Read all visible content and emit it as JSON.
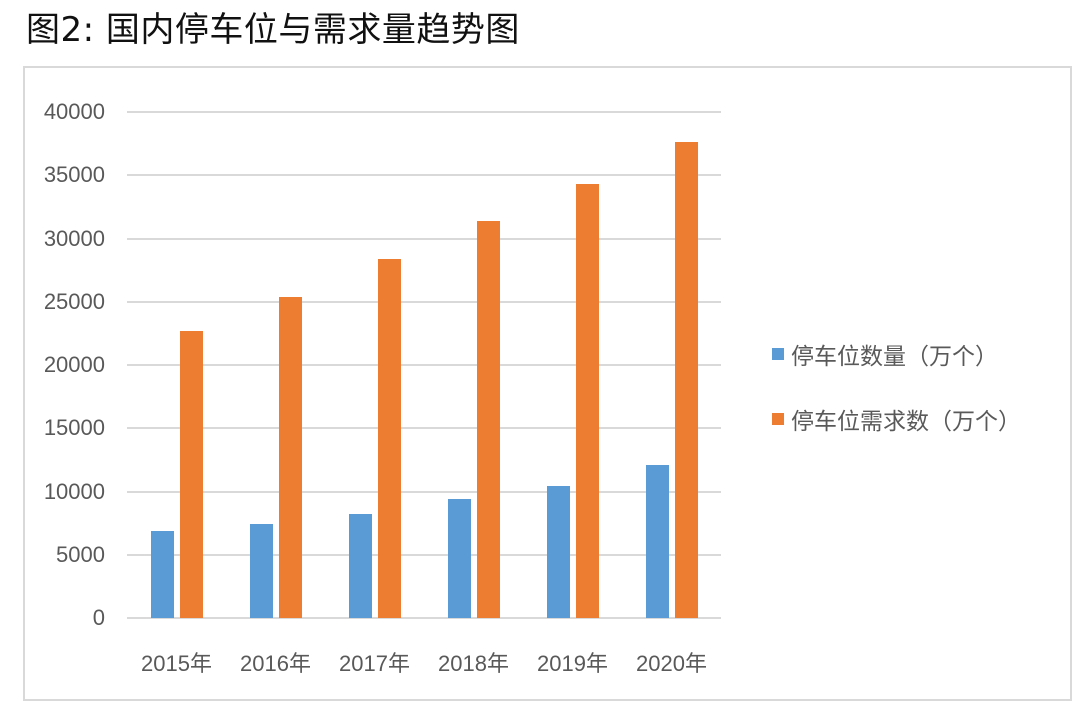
{
  "title": "图2: 国内停车位与需求量趋势图",
  "colors": {
    "series0": "#5b9bd5",
    "series1": "#ed7d31",
    "grid": "#d9d9d9",
    "text": "#595959"
  },
  "legend": [
    {
      "label": "停车位数量（万个）",
      "color": "#5b9bd5"
    },
    {
      "label": "停车位需求数（万个）",
      "color": "#ed7d31"
    }
  ],
  "y_ticks": [
    "0",
    "5000",
    "10000",
    "15000",
    "20000",
    "25000",
    "30000",
    "35000",
    "40000"
  ],
  "x_ticks": [
    "2015年",
    "2016年",
    "2017年",
    "2018年",
    "2019年",
    "2020年"
  ],
  "chart_data": {
    "type": "bar",
    "title": "图2: 国内停车位与需求量趋势图",
    "xlabel": "",
    "ylabel": "",
    "categories": [
      "2015年",
      "2016年",
      "2017年",
      "2018年",
      "2019年",
      "2020年"
    ],
    "series": [
      {
        "name": "停车位数量（万个）",
        "values": [
          6900,
          7450,
          8250,
          9400,
          10450,
          12100
        ]
      },
      {
        "name": "停车位需求数（万个）",
        "values": [
          22700,
          25400,
          28400,
          31400,
          34300,
          37600
        ]
      }
    ],
    "ylim": [
      0,
      40000
    ],
    "ytick_step": 5000,
    "grid": true,
    "legend_position": "right"
  }
}
